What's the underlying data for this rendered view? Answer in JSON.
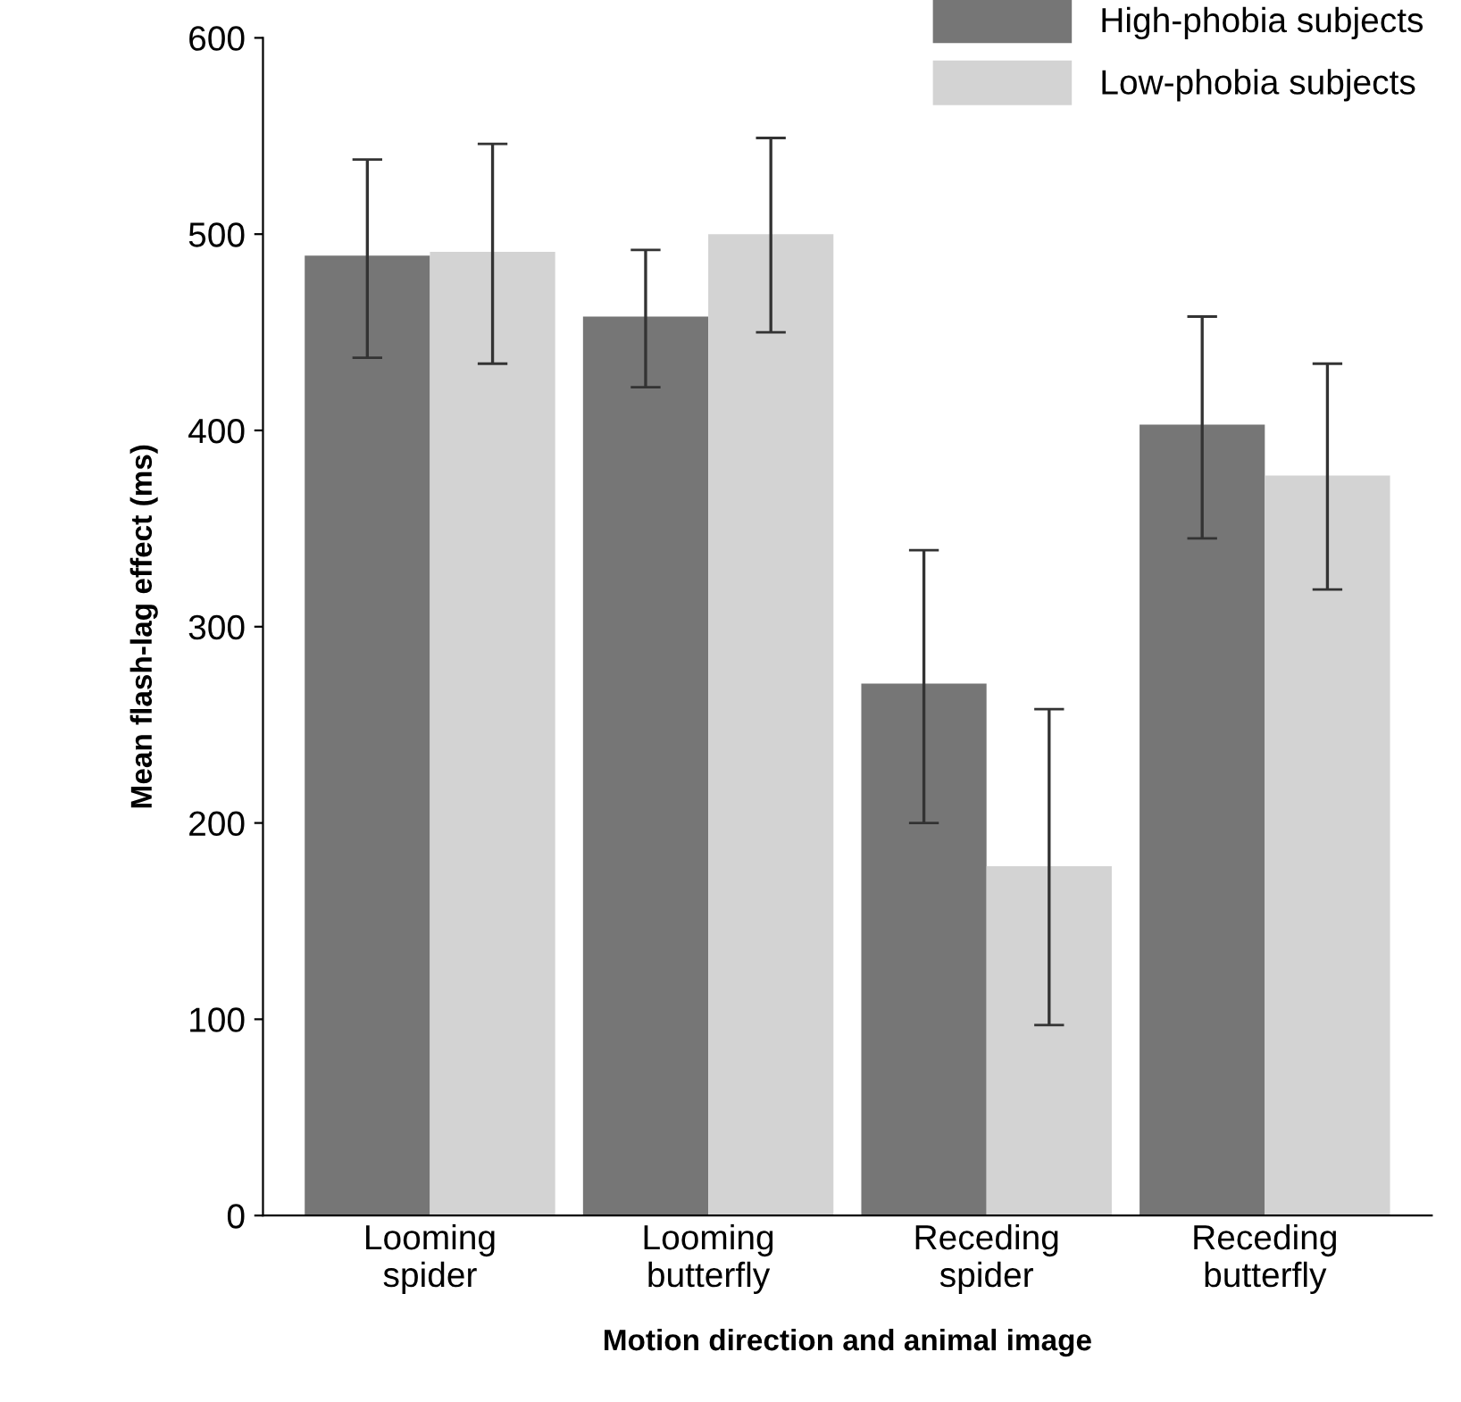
{
  "chart_data": {
    "type": "bar",
    "xlabel": "Motion direction and animal image",
    "ylabel": "Mean flash-lag effect (ms)",
    "categories": [
      "Looming\nspider",
      "Looming\nbutterfly",
      "Receding\nspider",
      "Receding\nbutterfly"
    ],
    "series": [
      {
        "name": "High-phobia subjects",
        "color": "#767676",
        "values": [
          489,
          458,
          271,
          403
        ],
        "errors": [
          [
            437,
            538
          ],
          [
            422,
            492
          ],
          [
            200,
            339
          ],
          [
            345,
            458
          ]
        ]
      },
      {
        "name": "Low-phobia subjects",
        "color": "#d3d3d3",
        "values": [
          491,
          500,
          178,
          377
        ],
        "errors": [
          [
            434,
            546
          ],
          [
            450,
            549
          ],
          [
            97,
            258
          ],
          [
            319,
            434
          ]
        ]
      }
    ],
    "ylim": [
      0,
      600
    ],
    "yticks": [
      0,
      100,
      200,
      300,
      400,
      500,
      600
    ],
    "grid": false,
    "legend": "top right"
  }
}
